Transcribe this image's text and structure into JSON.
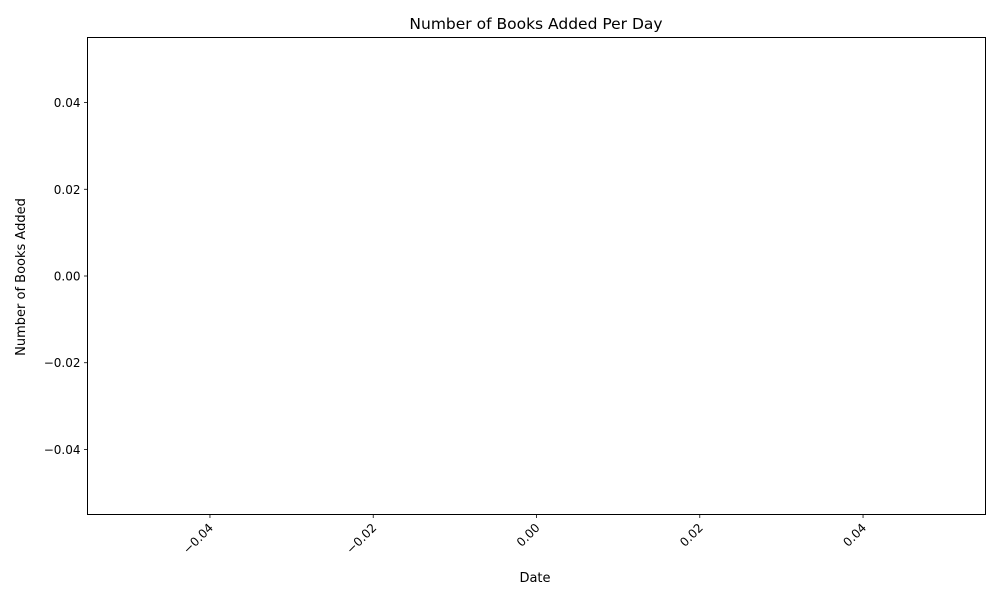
{
  "chart_data": {
    "type": "line",
    "title": "Number of Books Added Per Day",
    "xlabel": "Date",
    "ylabel": "Number of Books Added",
    "x": [],
    "series": [
      {
        "values": []
      }
    ],
    "xlim": [
      -0.055,
      0.055
    ],
    "ylim": [
      -0.055,
      0.055
    ],
    "xticks": [
      -0.04,
      -0.02,
      0.0,
      0.02,
      0.04
    ],
    "xtick_labels": [
      "−0.04",
      "−0.02",
      "0.00",
      "0.02",
      "0.04"
    ],
    "yticks": [
      -0.04,
      -0.02,
      0.0,
      0.02,
      0.04
    ],
    "ytick_labels": [
      "−0.04",
      "−0.02",
      "0.00",
      "0.02",
      "0.04"
    ],
    "xtick_rotation_deg": 45,
    "grid": false,
    "legend": "none",
    "colors": {
      "axes": "#000000",
      "background": "#ffffff"
    }
  }
}
